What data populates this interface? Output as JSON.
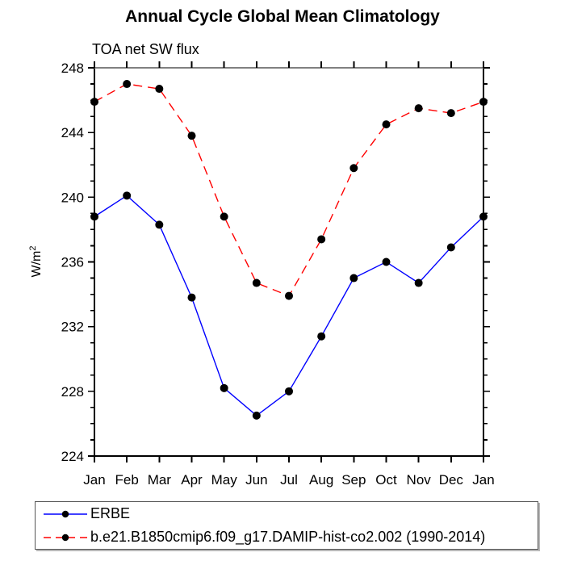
{
  "chart_data": {
    "type": "line",
    "title": "Annual Cycle Global Mean Climatology",
    "subtitle": "TOA net SW flux",
    "ylabel": "W/m",
    "ylabel_sup": "2",
    "categories": [
      "Jan",
      "Feb",
      "Mar",
      "Apr",
      "May",
      "Jun",
      "Jul",
      "Aug",
      "Sep",
      "Oct",
      "Nov",
      "Dec",
      "Jan"
    ],
    "ylim": [
      224,
      248
    ],
    "yticks": [
      224,
      228,
      232,
      236,
      240,
      244,
      248
    ],
    "yminor_step": 1,
    "grid": "off",
    "legend_position": "bottom",
    "frame_top_color": "#808080",
    "axis_color": "#000000",
    "marker_color": "#000000",
    "series": [
      {
        "name": "ERBE",
        "color": "#0000ff",
        "style": "solid",
        "values": [
          238.8,
          240.1,
          238.3,
          233.8,
          228.2,
          226.5,
          228.0,
          231.4,
          235.0,
          236.0,
          234.7,
          236.9,
          238.8
        ]
      },
      {
        "name": "b.e21.B1850cmip6.f09_g17.DAMIP-hist-co2.002 (1990-2014)",
        "color": "#ff0000",
        "style": "dashed",
        "values": [
          245.9,
          247.0,
          246.7,
          243.8,
          238.8,
          234.7,
          233.9,
          237.4,
          241.8,
          244.5,
          245.5,
          245.2,
          245.9
        ]
      }
    ]
  }
}
